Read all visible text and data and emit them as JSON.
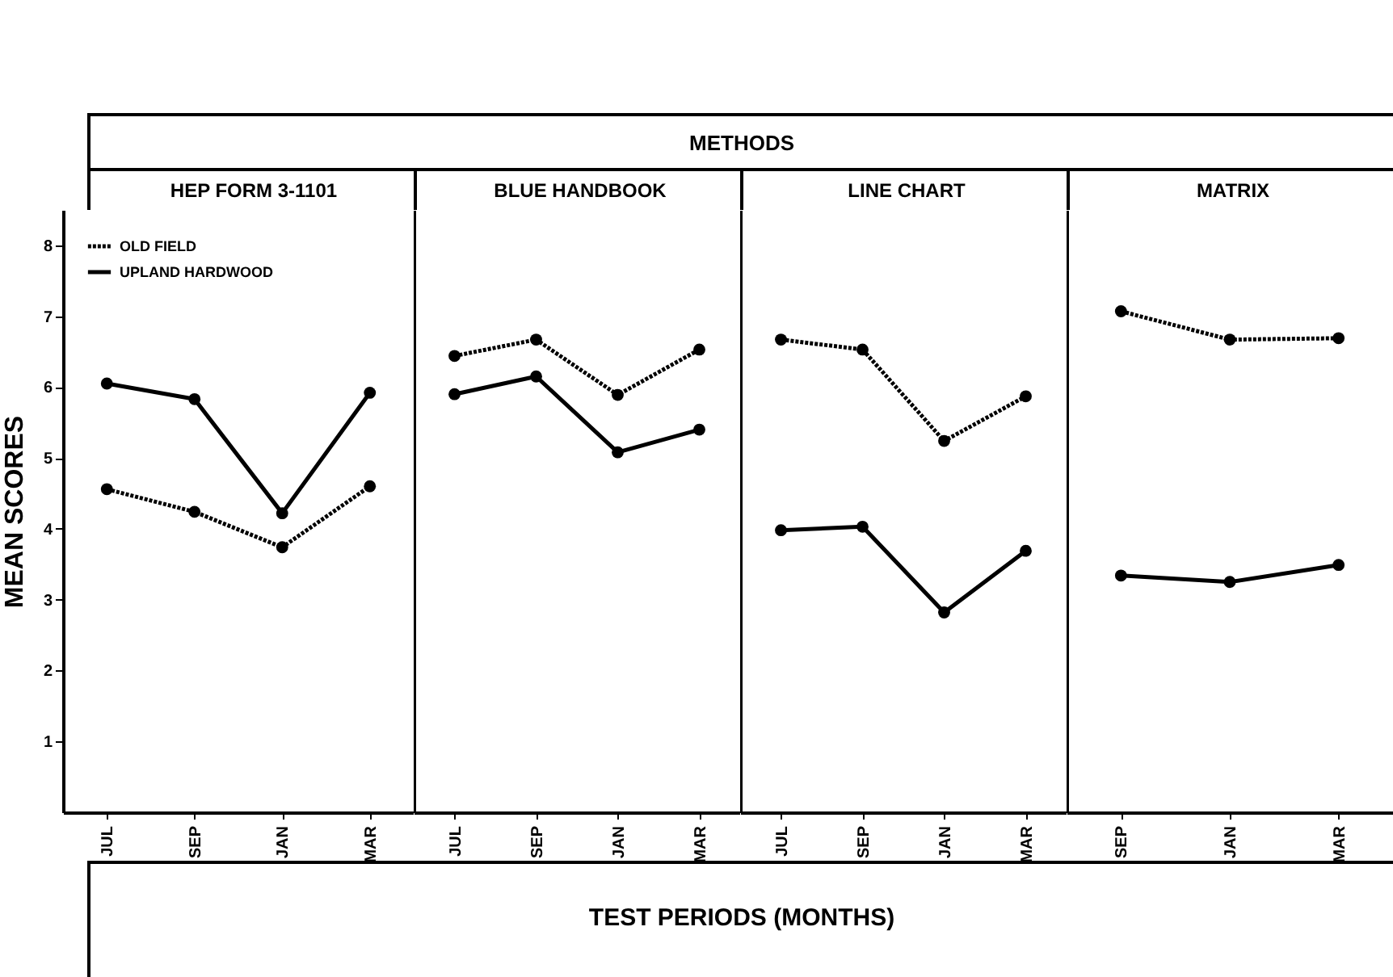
{
  "chart_data": [
    {
      "type": "line",
      "title": "HEP FORM 3-1101",
      "annotations": [
        "METHODS",
        "TEST PERIODS (MONTHS)"
      ],
      "ylabel": "MEAN SCORES",
      "categories": [
        "JUL",
        "SEP",
        "JAN",
        "MAR"
      ],
      "series": [
        {
          "name": "OLD FIELD",
          "color": "#000000",
          "line_style": "dotted",
          "values": [
            4.56,
            4.24,
            3.74,
            4.6
          ]
        },
        {
          "name": "UPLAND HARDWOOD",
          "color": "#000000",
          "line_style": "solid",
          "values": [
            6.05,
            5.83,
            4.22,
            5.92
          ]
        }
      ],
      "ylim": [
        0,
        8.5
      ],
      "yticks": [
        1,
        2,
        3,
        4,
        5,
        6,
        7,
        8
      ],
      "legend": "top left",
      "marker": "circle"
    },
    {
      "type": "line",
      "title": "BLUE HANDBOOK",
      "categories": [
        "JUL",
        "SEP",
        "JAN",
        "MAR"
      ],
      "series": [
        {
          "color": "#000000",
          "line_style": "dotted",
          "values": [
            6.44,
            6.67,
            5.89,
            6.53
          ]
        },
        {
          "color": "#000000",
          "line_style": "solid",
          "values": [
            5.9,
            6.15,
            5.08,
            5.4
          ]
        }
      ],
      "ylim": [
        0,
        8.5
      ],
      "yticks": [
        1,
        2,
        3,
        4,
        5,
        6,
        7,
        8
      ],
      "tick_labels": "x",
      "marker": "circle"
    },
    {
      "type": "line",
      "title": "LINE CHART",
      "categories": [
        "JUL",
        "SEP",
        "JAN",
        "MAR"
      ],
      "series": [
        {
          "color": "#000000",
          "line_style": "dotted",
          "values": [
            6.67,
            6.53,
            5.24,
            5.87
          ]
        },
        {
          "color": "#000000",
          "line_style": "solid",
          "values": [
            3.98,
            4.03,
            2.82,
            3.69
          ]
        }
      ],
      "ylim": [
        0,
        8.5
      ],
      "yticks": [
        1,
        2,
        3,
        4,
        5,
        6,
        7,
        8
      ],
      "tick_labels": "x",
      "marker": "circle"
    },
    {
      "type": "line",
      "title": "MATRIX",
      "categories": [
        "SEP",
        "JAN",
        "MAR"
      ],
      "series": [
        {
          "color": "#000000",
          "line_style": "dotted",
          "values": [
            7.07,
            6.67,
            6.69
          ]
        },
        {
          "color": "#000000",
          "line_style": "solid",
          "values": [
            3.34,
            3.25,
            3.49
          ]
        }
      ],
      "ylim": [
        0,
        8.5
      ],
      "yticks": [
        1,
        2,
        3,
        4,
        5,
        6,
        7,
        8
      ],
      "tick_labels": "x",
      "marker": "circle"
    }
  ]
}
